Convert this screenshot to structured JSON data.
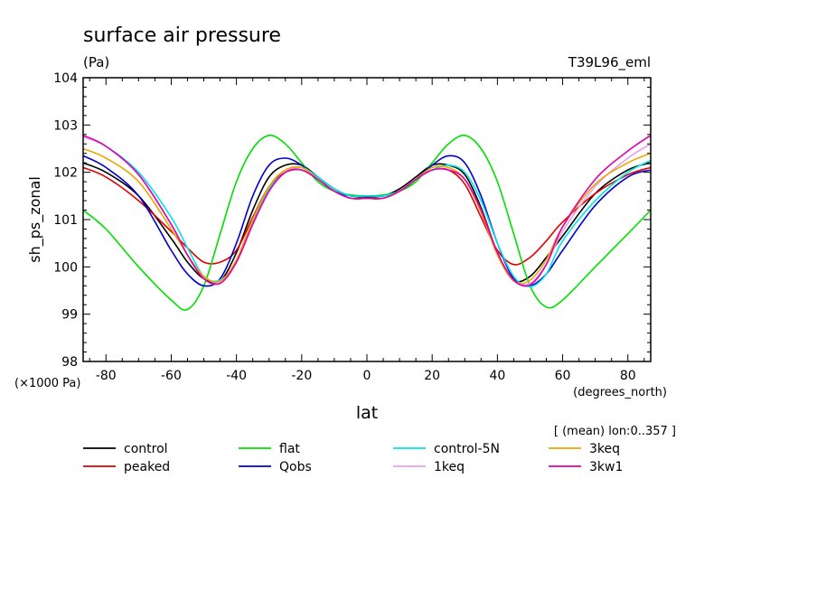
{
  "header": {
    "title": "surface air pressure",
    "units": "(Pa)",
    "experiment": "T39L96_eml"
  },
  "footnote": "[ (mean) lon:0..357 ]",
  "chart_data": {
    "type": "line",
    "title": "surface air pressure",
    "xlabel": "lat",
    "x_units": "(degrees_north)",
    "ylabel": "sh_ps_zonal",
    "y_scale_label": "(×1000 Pa)",
    "xlim": [
      -87,
      87
    ],
    "ylim": [
      98,
      104
    ],
    "x_ticks": [
      -80,
      -60,
      -40,
      -20,
      0,
      20,
      40,
      60,
      80
    ],
    "x_tick_labels": [
      "-80",
      "-60",
      "-40",
      "-20",
      "0",
      "20",
      "40",
      "60",
      "80"
    ],
    "y_ticks": [
      98,
      99,
      100,
      101,
      102,
      103,
      104
    ],
    "y_tick_labels": [
      "98",
      "99",
      "100",
      "101",
      "102",
      "103",
      "104"
    ],
    "grid": false,
    "legend_position": "bottom",
    "x": [
      -87,
      -80,
      -70,
      -60,
      -55,
      -50,
      -45,
      -40,
      -35,
      -30,
      -25,
      -20,
      -15,
      -10,
      -5,
      0,
      5,
      10,
      15,
      20,
      25,
      30,
      35,
      40,
      45,
      50,
      55,
      60,
      70,
      80,
      87
    ],
    "series": [
      {
        "name": "control",
        "color": "#000000",
        "values": [
          102.2,
          102.0,
          101.5,
          100.6,
          100.1,
          99.75,
          99.7,
          100.3,
          101.2,
          101.9,
          102.15,
          102.15,
          101.9,
          101.65,
          101.5,
          101.48,
          101.5,
          101.65,
          101.9,
          102.15,
          102.15,
          101.95,
          101.25,
          100.3,
          99.72,
          99.8,
          100.2,
          100.65,
          101.55,
          102.05,
          102.2
        ]
      },
      {
        "name": "peaked",
        "color": "#e00000",
        "values": [
          102.1,
          101.9,
          101.4,
          100.75,
          100.4,
          100.1,
          100.1,
          100.35,
          101.05,
          101.7,
          102.0,
          102.05,
          101.85,
          101.6,
          101.45,
          101.45,
          101.45,
          101.6,
          101.85,
          102.05,
          102.05,
          101.75,
          101.05,
          100.35,
          100.05,
          100.2,
          100.55,
          100.95,
          101.55,
          101.95,
          102.1
        ]
      },
      {
        "name": "flat",
        "color": "#00e000",
        "values": [
          101.2,
          100.8,
          100.0,
          99.3,
          99.1,
          99.6,
          100.7,
          101.8,
          102.5,
          102.78,
          102.6,
          102.2,
          101.8,
          101.6,
          101.52,
          101.5,
          101.52,
          101.6,
          101.8,
          102.2,
          102.6,
          102.78,
          102.5,
          101.8,
          100.7,
          99.6,
          99.15,
          99.3,
          100.0,
          100.7,
          101.2
        ]
      },
      {
        "name": "Qobs",
        "color": "#0000d0",
        "values": [
          102.35,
          102.1,
          101.5,
          100.35,
          99.85,
          99.6,
          99.75,
          100.5,
          101.5,
          102.15,
          102.3,
          102.15,
          101.85,
          101.6,
          101.5,
          101.5,
          101.5,
          101.6,
          101.85,
          102.15,
          102.35,
          102.2,
          101.5,
          100.5,
          99.75,
          99.6,
          99.85,
          100.35,
          101.3,
          101.9,
          102.05
        ]
      },
      {
        "name": "control-5N",
        "color": "#00e5e5",
        "values": [
          102.75,
          102.55,
          102.0,
          101.05,
          100.4,
          99.8,
          99.72,
          100.1,
          100.95,
          101.65,
          102.0,
          102.1,
          101.9,
          101.65,
          101.5,
          101.5,
          101.5,
          101.6,
          101.85,
          102.05,
          102.15,
          102.0,
          101.4,
          100.5,
          99.8,
          99.58,
          99.85,
          100.55,
          101.4,
          102.0,
          102.25
        ]
      },
      {
        "name": "1keq",
        "color": "#e8a0e8",
        "values": [
          102.75,
          102.55,
          101.95,
          100.9,
          100.25,
          99.8,
          99.68,
          100.1,
          100.9,
          101.6,
          102.0,
          102.1,
          101.85,
          101.6,
          101.45,
          101.45,
          101.45,
          101.6,
          101.85,
          102.05,
          102.05,
          101.85,
          101.2,
          100.3,
          99.72,
          99.65,
          100.05,
          100.75,
          101.7,
          102.3,
          102.6
        ]
      },
      {
        "name": "3keq",
        "color": "#e8a800",
        "values": [
          102.5,
          102.3,
          101.8,
          100.8,
          100.25,
          99.8,
          99.7,
          100.15,
          101.0,
          101.7,
          102.05,
          102.1,
          101.85,
          101.6,
          101.45,
          101.45,
          101.45,
          101.6,
          101.85,
          102.1,
          102.1,
          101.85,
          101.15,
          100.25,
          99.7,
          99.72,
          100.15,
          100.85,
          101.75,
          102.2,
          102.4
        ]
      },
      {
        "name": "3kw1",
        "color": "#e000b0",
        "values": [
          102.78,
          102.55,
          101.95,
          100.9,
          100.25,
          99.75,
          99.65,
          100.1,
          100.9,
          101.6,
          102.0,
          102.05,
          101.85,
          101.6,
          101.45,
          101.45,
          101.45,
          101.6,
          101.85,
          102.05,
          102.05,
          101.85,
          101.2,
          100.3,
          99.72,
          99.62,
          100.05,
          100.85,
          101.85,
          102.45,
          102.78
        ]
      }
    ]
  }
}
